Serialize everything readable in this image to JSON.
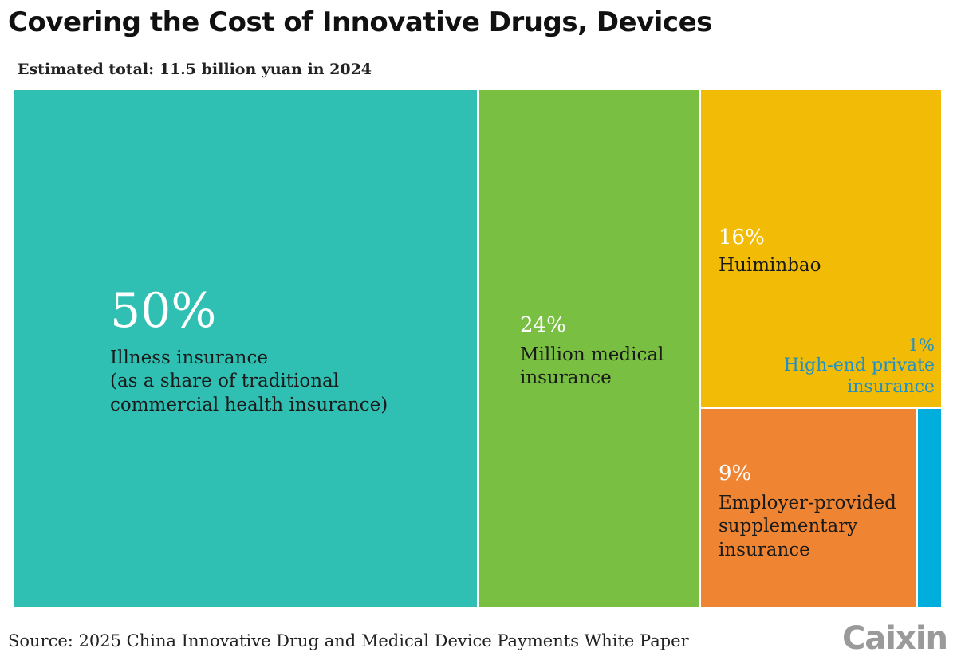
{
  "chart_data": {
    "type": "treemap",
    "title": "Covering the Cost of Innovative Drugs, Devices",
    "subtitle": "Estimated total: 11.5 billion yuan in 2024",
    "unit": "%",
    "items": [
      {
        "percent_label": "50%",
        "value": 50,
        "label_lines": [
          "Illness insurance",
          "(as a share of traditional",
          "commercial health insurance)"
        ],
        "color": "#30c0b3"
      },
      {
        "percent_label": "24%",
        "value": 24,
        "label_lines": [
          "Million medical",
          "insurance"
        ],
        "color": "#78bf42"
      },
      {
        "percent_label": "16%",
        "value": 16,
        "label_lines": [
          "Huiminbao"
        ],
        "color": "#f2bb05"
      },
      {
        "percent_label": "9%",
        "value": 9,
        "label_lines": [
          "Employer-provided",
          "supplementary",
          "insurance"
        ],
        "color": "#ef8432"
      },
      {
        "percent_label": "1%",
        "value": 1,
        "label_lines": [
          "High-end private",
          "insurance"
        ],
        "color": "#00aede"
      }
    ],
    "source": "Source: 2025 China Innovative Drug and Medical Device Payments White Paper",
    "logo": "Caixin"
  }
}
